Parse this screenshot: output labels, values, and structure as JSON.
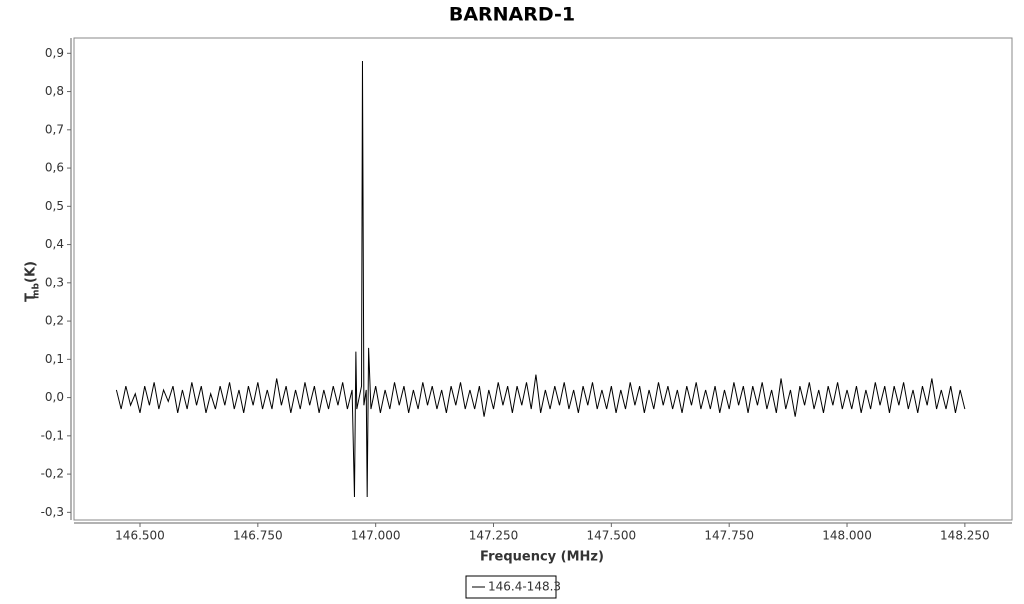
{
  "chart_data": {
    "type": "line",
    "title": "BARNARD-1",
    "x_label": "Frequency (MHz)",
    "y_label": "T",
    "y_label_subscript": "mb",
    "y_label_unit": "(K)",
    "xlim": [
      146.36,
      148.35
    ],
    "ylim": [
      -0.32,
      0.94
    ],
    "xticks": [
      {
        "value": 146.5,
        "label": "146.500"
      },
      {
        "value": 146.75,
        "label": "146.750"
      },
      {
        "value": 147,
        "label": "147.000"
      },
      {
        "value": 147.25,
        "label": "147.250"
      },
      {
        "value": 147.5,
        "label": "147.500"
      },
      {
        "value": 147.75,
        "label": "147.750"
      },
      {
        "value": 148,
        "label": "148.000"
      },
      {
        "value": 148.25,
        "label": "148.250"
      }
    ],
    "yticks": [
      {
        "value": -0.3,
        "label": "-0,3"
      },
      {
        "value": -0.2,
        "label": "-0,2"
      },
      {
        "value": -0.1,
        "label": "-0,1"
      },
      {
        "value": 0,
        "label": "0,0"
      },
      {
        "value": 0.1,
        "label": "0,1"
      },
      {
        "value": 0.2,
        "label": "0,2"
      },
      {
        "value": 0.3,
        "label": "0,3"
      },
      {
        "value": 0.4,
        "label": "0,4"
      },
      {
        "value": 0.5,
        "label": "0,5"
      },
      {
        "value": 0.6,
        "label": "0,6"
      },
      {
        "value": 0.7,
        "label": "0,7"
      },
      {
        "value": 0.8,
        "label": "0,8"
      },
      {
        "value": 0.9,
        "label": "0,9"
      }
    ],
    "x": [
      146.45,
      146.46,
      146.47,
      146.48,
      146.49,
      146.5,
      146.51,
      146.52,
      146.53,
      146.54,
      146.55,
      146.56,
      146.57,
      146.58,
      146.59,
      146.6,
      146.61,
      146.62,
      146.63,
      146.64,
      146.65,
      146.66,
      146.67,
      146.68,
      146.69,
      146.7,
      146.71,
      146.72,
      146.73,
      146.74,
      146.75,
      146.76,
      146.77,
      146.78,
      146.79,
      146.8,
      146.81,
      146.82,
      146.83,
      146.84,
      146.85,
      146.86,
      146.87,
      146.88,
      146.89,
      146.9,
      146.91,
      146.92,
      146.93,
      146.94,
      146.95,
      146.955,
      146.958,
      146.96,
      146.97,
      146.972,
      146.975,
      146.98,
      146.982,
      146.985,
      146.99,
      147.0,
      147.01,
      147.02,
      147.03,
      147.04,
      147.05,
      147.06,
      147.07,
      147.08,
      147.09,
      147.1,
      147.11,
      147.12,
      147.13,
      147.14,
      147.15,
      147.16,
      147.17,
      147.18,
      147.19,
      147.2,
      147.21,
      147.22,
      147.23,
      147.24,
      147.25,
      147.26,
      147.27,
      147.28,
      147.29,
      147.3,
      147.31,
      147.32,
      147.33,
      147.34,
      147.35,
      147.36,
      147.37,
      147.38,
      147.39,
      147.4,
      147.41,
      147.42,
      147.43,
      147.44,
      147.45,
      147.46,
      147.47,
      147.48,
      147.49,
      147.5,
      147.51,
      147.52,
      147.53,
      147.54,
      147.55,
      147.56,
      147.57,
      147.58,
      147.59,
      147.6,
      147.61,
      147.62,
      147.63,
      147.64,
      147.65,
      147.66,
      147.67,
      147.68,
      147.69,
      147.7,
      147.71,
      147.72,
      147.73,
      147.74,
      147.75,
      147.76,
      147.77,
      147.78,
      147.79,
      147.8,
      147.81,
      147.82,
      147.83,
      147.84,
      147.85,
      147.86,
      147.87,
      147.88,
      147.89,
      147.9,
      147.91,
      147.92,
      147.93,
      147.94,
      147.95,
      147.96,
      147.97,
      147.98,
      147.99,
      148.0,
      148.01,
      148.02,
      148.03,
      148.04,
      148.05,
      148.06,
      148.07,
      148.08,
      148.09,
      148.1,
      148.11,
      148.12,
      148.13,
      148.14,
      148.15,
      148.16,
      148.17,
      148.18,
      148.19,
      148.2,
      148.21,
      148.22,
      148.23,
      148.24,
      148.25
    ],
    "series": [
      {
        "name": "146.4-148.3",
        "color": "#000000",
        "values": [
          0.02,
          -0.03,
          0.03,
          -0.02,
          0.01,
          -0.04,
          0.03,
          -0.02,
          0.04,
          -0.03,
          0.02,
          -0.01,
          0.03,
          -0.04,
          0.02,
          -0.03,
          0.04,
          -0.02,
          0.03,
          -0.04,
          0.01,
          -0.03,
          0.03,
          -0.02,
          0.04,
          -0.03,
          0.02,
          -0.04,
          0.03,
          -0.02,
          0.04,
          -0.03,
          0.02,
          -0.03,
          0.05,
          -0.02,
          0.03,
          -0.04,
          0.02,
          -0.03,
          0.04,
          -0.02,
          0.03,
          -0.04,
          0.02,
          -0.03,
          0.03,
          -0.02,
          0.04,
          -0.03,
          0.02,
          -0.26,
          0.12,
          -0.03,
          0.03,
          0.88,
          -0.02,
          0.02,
          -0.26,
          0.13,
          -0.03,
          0.03,
          -0.04,
          0.02,
          -0.03,
          0.04,
          -0.02,
          0.03,
          -0.04,
          0.02,
          -0.03,
          0.04,
          -0.02,
          0.03,
          -0.03,
          0.02,
          -0.04,
          0.03,
          -0.02,
          0.04,
          -0.03,
          0.02,
          -0.03,
          0.03,
          -0.05,
          0.02,
          -0.03,
          0.04,
          -0.02,
          0.03,
          -0.04,
          0.03,
          -0.02,
          0.04,
          -0.03,
          0.06,
          -0.04,
          0.02,
          -0.03,
          0.03,
          -0.02,
          0.04,
          -0.03,
          0.02,
          -0.04,
          0.03,
          -0.02,
          0.04,
          -0.03,
          0.02,
          -0.03,
          0.03,
          -0.04,
          0.02,
          -0.03,
          0.04,
          -0.02,
          0.03,
          -0.04,
          0.02,
          -0.03,
          0.04,
          -0.02,
          0.03,
          -0.03,
          0.02,
          -0.04,
          0.03,
          -0.02,
          0.04,
          -0.03,
          0.02,
          -0.03,
          0.03,
          -0.04,
          0.02,
          -0.03,
          0.04,
          -0.02,
          0.03,
          -0.04,
          0.03,
          -0.02,
          0.04,
          -0.03,
          0.02,
          -0.04,
          0.05,
          -0.03,
          0.02,
          -0.05,
          0.03,
          -0.02,
          0.04,
          -0.03,
          0.02,
          -0.04,
          0.03,
          -0.02,
          0.04,
          -0.03,
          0.02,
          -0.03,
          0.03,
          -0.04,
          0.02,
          -0.03,
          0.04,
          -0.02,
          0.03,
          -0.04,
          0.03,
          -0.02,
          0.04,
          -0.03,
          0.02,
          -0.04,
          0.03,
          -0.02,
          0.05,
          -0.03,
          0.02,
          -0.03,
          0.03,
          -0.04,
          0.02,
          -0.03
        ]
      }
    ]
  }
}
